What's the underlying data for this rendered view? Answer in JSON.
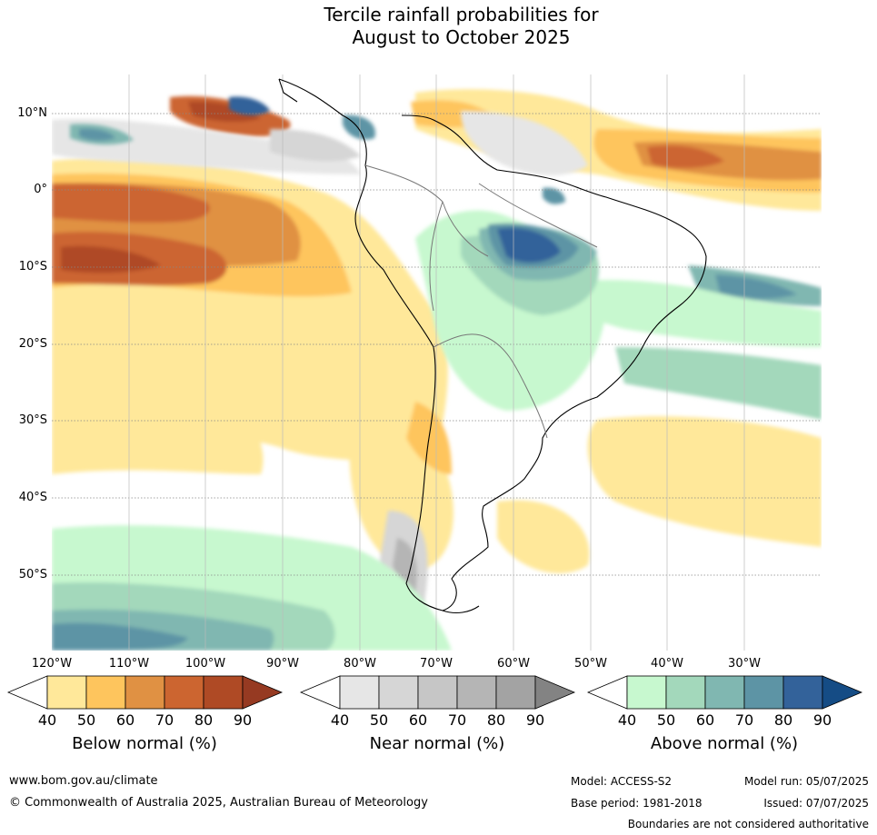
{
  "title": {
    "line1": "Tercile rainfall probabilities for",
    "line2": "August to October 2025"
  },
  "lat_labels": [
    "10°N",
    "0°",
    "10°S",
    "20°S",
    "30°S",
    "40°S",
    "50°S"
  ],
  "lon_labels": [
    "120°W",
    "110°W",
    "100°W",
    "90°W",
    "80°W",
    "70°W",
    "60°W",
    "50°W",
    "40°W",
    "30°W"
  ],
  "legend": {
    "ticks": [
      "40",
      "50",
      "60",
      "70",
      "80",
      "90"
    ],
    "groups": [
      {
        "title": "Below normal (%)",
        "colors": [
          "#ffffff",
          "#ffe89a",
          "#fec55d",
          "#e09143",
          "#cc6530",
          "#af4a25",
          "#963a22"
        ]
      },
      {
        "title": "Near normal (%)",
        "colors": [
          "#ffffff",
          "#e6e6e6",
          "#d6d6d6",
          "#c6c6c6",
          "#b5b5b5",
          "#a3a3a3",
          "#838383"
        ]
      },
      {
        "title": "Above normal (%)",
        "colors": [
          "#ffffff",
          "#c7f8cf",
          "#a3d8bb",
          "#80b7b1",
          "#5d94a5",
          "#33629a",
          "#154c85"
        ]
      }
    ]
  },
  "footer": {
    "url": "www.bom.gov.au/climate",
    "copyright": "© Commonwealth of Australia 2025, Australian Bureau of Meteorology",
    "model": "Model: ACCESS-S2",
    "model_run": "Model run: 05/07/2025",
    "base_period": "Base period: 1981-2018",
    "issued": "Issued: 07/07/2025",
    "disclaimer": "Boundaries are not considered authoritative"
  }
}
